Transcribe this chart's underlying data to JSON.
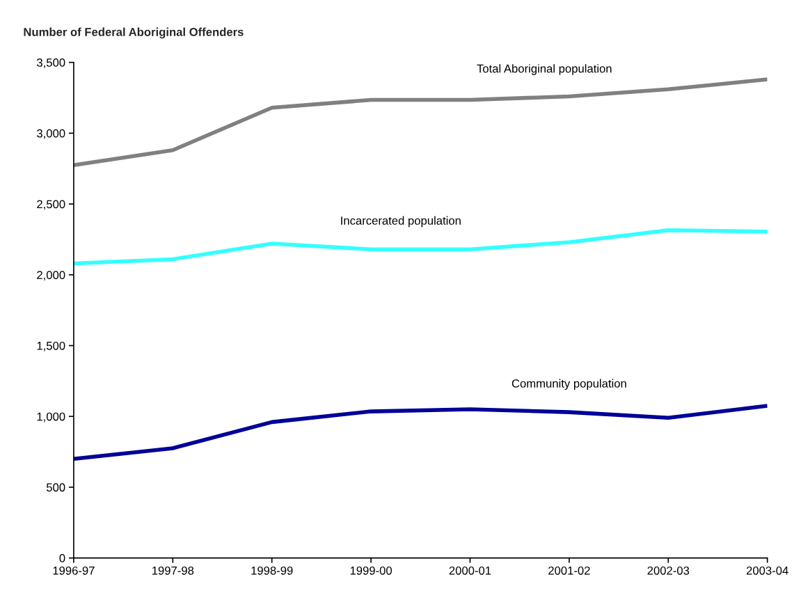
{
  "chart_data": {
    "type": "line",
    "title": "Number of Federal Aboriginal Offenders",
    "categories": [
      "1996-97",
      "1997-98",
      "1998-99",
      "1999-00",
      "2000-01",
      "2001-02",
      "2002-03",
      "2003-04"
    ],
    "series": [
      {
        "name": "Total Aboriginal population",
        "color": "#808080",
        "values": [
          2775,
          2880,
          3180,
          3235,
          3235,
          3260,
          3310,
          3380
        ]
      },
      {
        "name": "Incarcerated population",
        "color": "#33ffff",
        "values": [
          2080,
          2110,
          2220,
          2180,
          2180,
          2230,
          2315,
          2305
        ]
      },
      {
        "name": "Community population",
        "color": "#000099",
        "values": [
          700,
          775,
          960,
          1035,
          1050,
          1030,
          990,
          1075
        ]
      }
    ],
    "ylim": [
      0,
      3500
    ],
    "yticks": [
      {
        "value": 0,
        "label": "0"
      },
      {
        "value": 500,
        "label": "500"
      },
      {
        "value": 1000,
        "label": "1,000"
      },
      {
        "value": 1500,
        "label": "1,500"
      },
      {
        "value": 2000,
        "label": "2,000"
      },
      {
        "value": 2500,
        "label": "2,500"
      },
      {
        "value": 3000,
        "label": "3,000"
      },
      {
        "value": 3500,
        "label": "3,500"
      }
    ],
    "grid": false,
    "legend": false,
    "marker": "none",
    "line_style": "solid"
  }
}
